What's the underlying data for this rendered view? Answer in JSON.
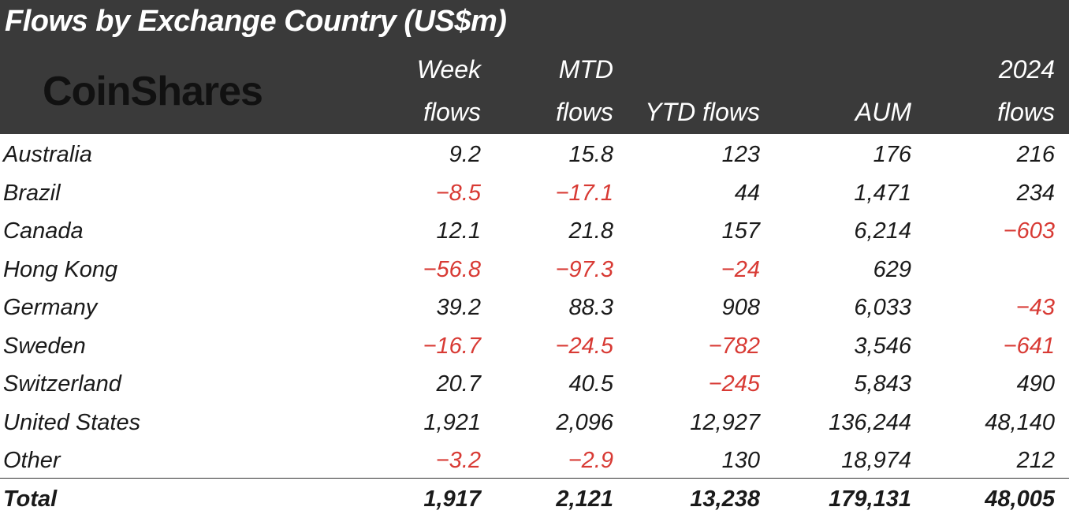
{
  "chart_data": {
    "type": "table",
    "title": "Flows by Exchange Country (US$m)",
    "brand": "CoinShares",
    "columns": [
      {
        "key": "country",
        "line1": "",
        "line2": ""
      },
      {
        "key": "week",
        "line1": "Week",
        "line2": "flows"
      },
      {
        "key": "mtd",
        "line1": "MTD",
        "line2": "flows"
      },
      {
        "key": "ytd",
        "line1": "",
        "line2": "YTD flows"
      },
      {
        "key": "aum",
        "line1": "",
        "line2": "AUM"
      },
      {
        "key": "y2024",
        "line1": "2024",
        "line2": "flows"
      }
    ],
    "rows": [
      {
        "country": "Australia",
        "week": "9.2",
        "mtd": "15.8",
        "ytd": "123",
        "aum": "176",
        "y2024": "216"
      },
      {
        "country": "Brazil",
        "week": "-8.5",
        "mtd": "-17.1",
        "ytd": "44",
        "aum": "1,471",
        "y2024": "234"
      },
      {
        "country": "Canada",
        "week": "12.1",
        "mtd": "21.8",
        "ytd": "157",
        "aum": "6,214",
        "y2024": "-603"
      },
      {
        "country": "Hong Kong",
        "week": "-56.8",
        "mtd": "-97.3",
        "ytd": "-24",
        "aum": "629",
        "y2024": ""
      },
      {
        "country": "Germany",
        "week": "39.2",
        "mtd": "88.3",
        "ytd": "908",
        "aum": "6,033",
        "y2024": "-43"
      },
      {
        "country": "Sweden",
        "week": "-16.7",
        "mtd": "-24.5",
        "ytd": "-782",
        "aum": "3,546",
        "y2024": "-641"
      },
      {
        "country": "Switzerland",
        "week": "20.7",
        "mtd": "40.5",
        "ytd": "-245",
        "aum": "5,843",
        "y2024": "490"
      },
      {
        "country": "United States",
        "week": "1,921",
        "mtd": "2,096",
        "ytd": "12,927",
        "aum": "136,244",
        "y2024": "48,140"
      },
      {
        "country": "Other",
        "week": "-3.2",
        "mtd": "-2.9",
        "ytd": "130",
        "aum": "18,974",
        "y2024": "212"
      }
    ],
    "total": {
      "country": "Total",
      "week": "1,917",
      "mtd": "2,121",
      "ytd": "13,238",
      "aum": "179,131",
      "y2024": "48,005"
    },
    "colors": {
      "header_bg": "#3a3a3a",
      "header_text": "#ffffff",
      "negative": "#d83a34",
      "text": "#1a1a1a"
    }
  }
}
